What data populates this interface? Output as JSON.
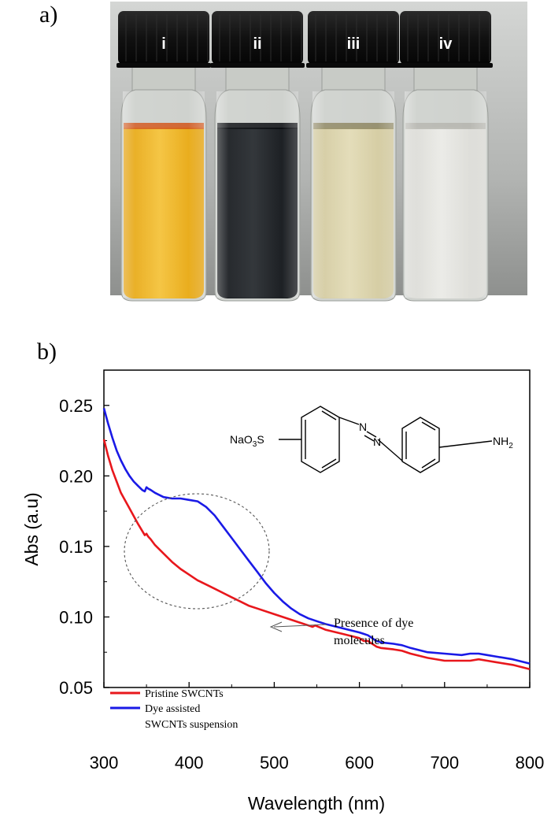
{
  "panel_a": {
    "label": "a)",
    "vials": [
      {
        "label": "i",
        "liquid": "#e3a10c",
        "liquid_light": "#f5c440",
        "meniscus": "#d2561a"
      },
      {
        "label": "ii",
        "liquid": "#14171b",
        "liquid_light": "#2e3236",
        "meniscus": "#0b0d10"
      },
      {
        "label": "iii",
        "liquid": "#cfc69a",
        "liquid_light": "#e3dcb8",
        "meniscus": "#8e8762"
      },
      {
        "label": "iv",
        "liquid": "#d7d7d2",
        "liquid_light": "#ebebe7",
        "meniscus": "#b5b5ae"
      }
    ]
  },
  "panel_b": {
    "label": "b)",
    "annotation": [
      "Presence of dye",
      "molecules"
    ],
    "molecule": {
      "left_group": "NaO",
      "left_sub": "3",
      "left_tail": "S",
      "right_group": "NH",
      "right_sub": "2",
      "n1": "N",
      "n2": "N"
    }
  },
  "chart_data": {
    "type": "line",
    "xlabel": "Wavelength (nm)",
    "ylabel": "Abs (a.u)",
    "xlim": [
      300,
      800
    ],
    "ylim": [
      0.05,
      0.275
    ],
    "xticks": [
      300,
      400,
      500,
      600,
      700,
      800
    ],
    "yticks": [
      "0.05",
      "0.10",
      "0.15",
      "0.20",
      "0.25"
    ],
    "ytick_values": [
      0.05,
      0.1,
      0.15,
      0.2,
      0.25
    ],
    "grid": false,
    "legend_position": "bottom-left",
    "series": [
      {
        "name": "Pristine SWCNTs",
        "color": "#e8171c",
        "x": [
          300,
          305,
          310,
          315,
          320,
          330,
          340,
          345,
          348,
          350,
          352,
          355,
          360,
          370,
          380,
          390,
          400,
          410,
          420,
          430,
          440,
          450,
          460,
          470,
          480,
          500,
          520,
          540,
          545,
          548,
          560,
          580,
          600,
          605,
          610,
          620,
          625,
          640,
          650,
          660,
          680,
          700,
          720,
          730,
          740,
          750,
          760,
          780,
          800
        ],
        "y": [
          0.226,
          0.214,
          0.204,
          0.196,
          0.188,
          0.177,
          0.166,
          0.161,
          0.158,
          0.159,
          0.157,
          0.155,
          0.151,
          0.145,
          0.139,
          0.134,
          0.13,
          0.126,
          0.123,
          0.12,
          0.117,
          0.114,
          0.111,
          0.108,
          0.106,
          0.102,
          0.098,
          0.094,
          0.093,
          0.094,
          0.091,
          0.088,
          0.085,
          0.083,
          0.083,
          0.079,
          0.078,
          0.077,
          0.076,
          0.074,
          0.071,
          0.069,
          0.069,
          0.069,
          0.07,
          0.069,
          0.068,
          0.066,
          0.063
        ]
      },
      {
        "name": "Dye assisted SWCNTs suspension",
        "legend_lines": [
          "Dye assisted",
          "SWCNTs suspension"
        ],
        "color": "#1a1ae6",
        "x": [
          300,
          305,
          310,
          315,
          320,
          325,
          330,
          335,
          340,
          345,
          348,
          350,
          352,
          355,
          360,
          370,
          380,
          390,
          400,
          410,
          420,
          430,
          440,
          450,
          460,
          470,
          480,
          490,
          500,
          510,
          520,
          530,
          540,
          550,
          560,
          580,
          600,
          605,
          610,
          620,
          625,
          640,
          650,
          660,
          680,
          700,
          720,
          730,
          740,
          750,
          760,
          780,
          800
        ],
        "y": [
          0.248,
          0.237,
          0.227,
          0.218,
          0.211,
          0.205,
          0.2,
          0.196,
          0.193,
          0.19,
          0.189,
          0.192,
          0.191,
          0.19,
          0.188,
          0.185,
          0.184,
          0.184,
          0.183,
          0.182,
          0.178,
          0.172,
          0.164,
          0.156,
          0.148,
          0.14,
          0.132,
          0.124,
          0.117,
          0.111,
          0.106,
          0.102,
          0.099,
          0.097,
          0.095,
          0.092,
          0.089,
          0.088,
          0.087,
          0.083,
          0.082,
          0.081,
          0.08,
          0.078,
          0.075,
          0.074,
          0.073,
          0.074,
          0.074,
          0.073,
          0.072,
          0.07,
          0.067
        ]
      }
    ]
  }
}
